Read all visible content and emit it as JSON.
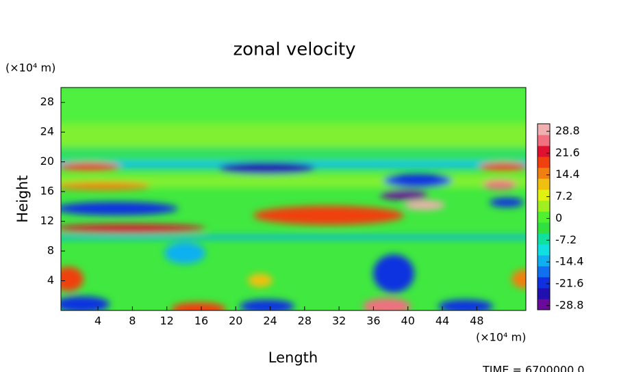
{
  "chart_data": {
    "type": "contour",
    "title": "zonal velocity",
    "xlabel": "Length",
    "ylabel": "Height",
    "x_unit": "(×10⁴ m)",
    "y_unit": "(×10⁴ m)",
    "xlim": [
      -0.3,
      53.7
    ],
    "xticks": [
      4,
      8,
      12,
      16,
      20,
      24,
      28,
      32,
      36,
      40,
      44,
      48
    ],
    "ylim": [
      0,
      30
    ],
    "yticks": [
      4,
      8,
      12,
      16,
      20,
      24,
      28
    ],
    "colorbar": {
      "lim": [
        -30.2,
        31.3
      ],
      "ticks": [
        28.8,
        21.6,
        14.4,
        7.2,
        0,
        -7.2,
        -14.4,
        -21.6,
        -28.8
      ],
      "colors": [
        "#6a0a9a",
        "#2010b0",
        "#1030e0",
        "#1070f0",
        "#10b0f0",
        "#10e0e0",
        "#10e0a0",
        "#30e040",
        "#50f030",
        "#a0f020",
        "#e0f010",
        "#f0c010",
        "#f08010",
        "#f04010",
        "#e01030",
        "#f07080",
        "#f0b0b0"
      ]
    },
    "footer": "TIME = 6700000.0"
  }
}
